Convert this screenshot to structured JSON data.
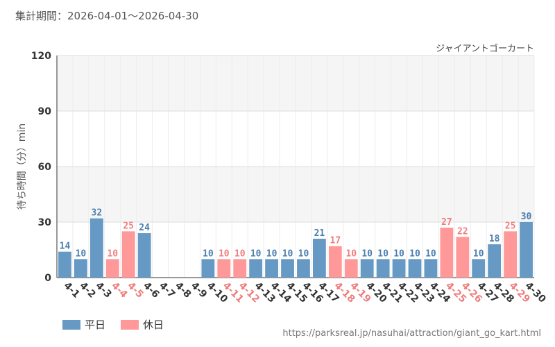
{
  "header": {
    "period_label": "集計期間：2026-04-01～2026-04-30"
  },
  "source_url": "https://parksreal.jp/nasuhai/attraction/giant_go_kart.html",
  "colors": {
    "weekday": "#6699c4",
    "holiday": "#ff9999",
    "weekday_text": "#4a7eb0",
    "holiday_text": "#f07d7d",
    "band": "#f5f5f5",
    "grid": "#dddddd"
  },
  "legend": [
    {
      "label": "平日",
      "kind": "weekday"
    },
    {
      "label": "休日",
      "kind": "holiday"
    }
  ],
  "chart_data": {
    "type": "bar",
    "title": "ジャイアントゴーカート",
    "ylabel": "待ち時間（分）min",
    "xlabel": "",
    "ylim": [
      0,
      120
    ],
    "yticks": [
      0,
      30,
      60,
      90,
      120
    ],
    "grid": true,
    "legend_position": "bottom-left",
    "categories": [
      "4-1",
      "4-2",
      "4-3",
      "4-4",
      "4-5",
      "4-6",
      "4-7",
      "4-8",
      "4-9",
      "4-10",
      "4-11",
      "4-12",
      "4-13",
      "4-14",
      "4-15",
      "4-16",
      "4-17",
      "4-18",
      "4-19",
      "4-20",
      "4-21",
      "4-22",
      "4-23",
      "4-24",
      "4-25",
      "4-26",
      "4-27",
      "4-28",
      "4-29",
      "4-30"
    ],
    "values": [
      14,
      10,
      32,
      10,
      25,
      24,
      null,
      null,
      null,
      10,
      10,
      10,
      10,
      10,
      10,
      10,
      21,
      17,
      10,
      10,
      10,
      10,
      10,
      10,
      27,
      22,
      10,
      18,
      25,
      30
    ],
    "day_type": [
      "weekday",
      "weekday",
      "weekday",
      "holiday",
      "holiday",
      "weekday",
      "weekday",
      "weekday",
      "weekday",
      "weekday",
      "holiday",
      "holiday",
      "weekday",
      "weekday",
      "weekday",
      "weekday",
      "weekday",
      "holiday",
      "holiday",
      "weekday",
      "weekday",
      "weekday",
      "weekday",
      "weekday",
      "holiday",
      "holiday",
      "weekday",
      "weekday",
      "holiday",
      "weekday"
    ]
  }
}
